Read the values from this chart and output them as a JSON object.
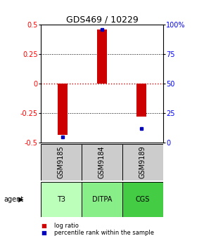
{
  "title": "GDS469 / 10229",
  "samples": [
    "GSM9185",
    "GSM9184",
    "GSM9189"
  ],
  "agents": [
    "T3",
    "DITPA",
    "CGS"
  ],
  "log_ratios": [
    -0.43,
    0.46,
    -0.28
  ],
  "percentile_ranks": [
    -0.45,
    0.46,
    -0.38
  ],
  "ylim": [
    -0.5,
    0.5
  ],
  "yticks_left": [
    -0.5,
    -0.25,
    0,
    0.25,
    0.5
  ],
  "ytick_labels_left": [
    "-0.5",
    "-0.25",
    "0",
    "0.25",
    "0.5"
  ],
  "yticks_right": [
    -0.5,
    -0.25,
    0,
    0.25,
    0.5
  ],
  "ytick_labels_right": [
    "0",
    "25",
    "50",
    "75",
    "100%"
  ],
  "bar_color": "#cc0000",
  "dot_color": "#0000bb",
  "agent_colors": [
    "#bbffbb",
    "#88ee88",
    "#44cc44"
  ],
  "sample_box_color": "#cccccc",
  "zero_line_color": "#cc0000",
  "bar_width": 0.25,
  "title_fontsize": 9,
  "tick_fontsize": 7,
  "label_fontsize": 7,
  "legend_fontsize": 6
}
